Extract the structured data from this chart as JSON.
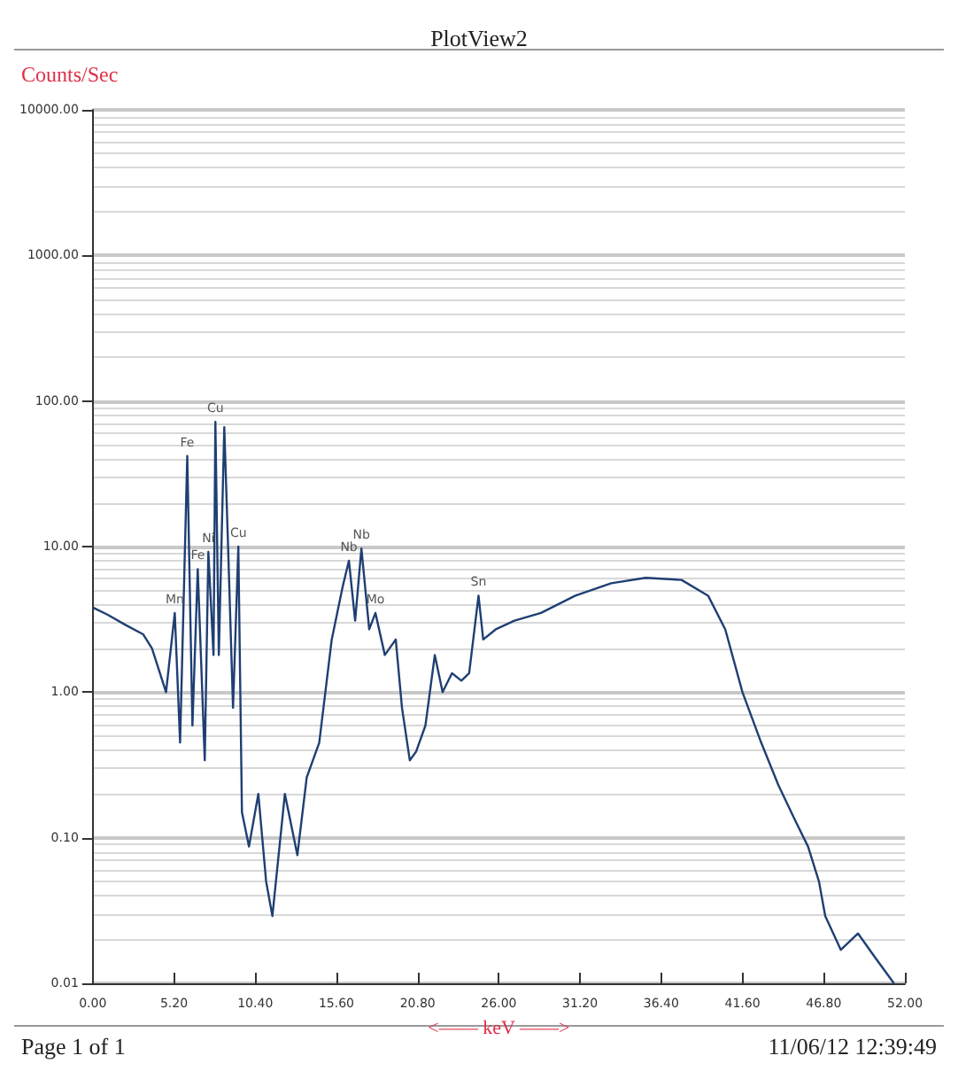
{
  "chart_data": {
    "type": "line",
    "title": "PlotView2",
    "ylabel": "Counts/Sec",
    "xlabel": "<—— keV ——>",
    "x": [
      0.05,
      0.96,
      2.09,
      3.22,
      3.79,
      4.69,
      5.25,
      5.59,
      6.05,
      6.38,
      6.72,
      7.17,
      7.4,
      7.73,
      7.85,
      8.07,
      8.42,
      8.64,
      8.98,
      9.32,
      9.55,
      10.0,
      10.6,
      11.1,
      11.5,
      12.3,
      13.1,
      13.7,
      14.5,
      15.3,
      16.0,
      16.4,
      16.8,
      17.2,
      17.7,
      18.1,
      18.7,
      19.4,
      19.8,
      20.3,
      20.7,
      21.3,
      21.9,
      22.4,
      23.0,
      23.6,
      24.1,
      24.7,
      25.0,
      25.8,
      27.0,
      28.7,
      30.9,
      33.2,
      35.4,
      37.7,
      39.4,
      40.5,
      41.6,
      42.8,
      43.9,
      45.0,
      45.8,
      46.5,
      46.9,
      47.9,
      49.0,
      50.1,
      51.3
    ],
    "series": [
      {
        "color": "#1f3f73",
        "values": [
          3.8,
          3.4,
          2.9,
          2.5,
          2.0,
          1.0,
          3.5,
          0.45,
          42,
          0.59,
          7.0,
          0.34,
          9.2,
          1.8,
          72,
          1.8,
          66,
          12,
          0.78,
          10,
          0.15,
          0.087,
          0.2,
          0.05,
          0.029,
          0.2,
          0.076,
          0.26,
          0.45,
          2.3,
          5.3,
          8.0,
          3.1,
          9.7,
          2.7,
          3.5,
          1.8,
          2.3,
          0.78,
          0.34,
          0.39,
          0.59,
          1.8,
          1.0,
          1.35,
          1.2,
          1.35,
          4.6,
          2.3,
          2.7,
          3.1,
          3.5,
          4.6,
          5.6,
          6.1,
          5.9,
          4.6,
          2.7,
          1.0,
          0.45,
          0.23,
          0.13,
          0.087,
          0.05,
          0.029,
          0.017,
          0.022,
          0.015,
          0.01
        ]
      }
    ],
    "xlim": [
      0,
      52
    ],
    "xticks": [
      {
        "value": 0,
        "label": "0.00"
      },
      {
        "value": 5.2,
        "label": "5.20"
      },
      {
        "value": 10.4,
        "label": "10.40"
      },
      {
        "value": 15.6,
        "label": "15.60"
      },
      {
        "value": 20.8,
        "label": "20.80"
      },
      {
        "value": 26,
        "label": "26.00"
      },
      {
        "value": 31.2,
        "label": "31.20"
      },
      {
        "value": 36.4,
        "label": "36.40"
      },
      {
        "value": 41.6,
        "label": "41.60"
      },
      {
        "value": 46.8,
        "label": "46.80"
      },
      {
        "value": 52,
        "label": "52.00"
      }
    ],
    "ylim": [
      0.01,
      10000
    ],
    "yticks": [
      {
        "value": 0.01,
        "label": "0.01"
      },
      {
        "value": 0.1,
        "label": "0.10"
      },
      {
        "value": 1,
        "label": "1.00"
      },
      {
        "value": 10,
        "label": "10.00"
      },
      {
        "value": 100,
        "label": "100.00"
      },
      {
        "value": 1000,
        "label": "1000.00"
      },
      {
        "value": 10000,
        "label": "10000.00"
      }
    ],
    "log": "y",
    "grid": "y",
    "annotations": [
      {
        "text": "Mn",
        "x": 5.25,
        "y": 3.5
      },
      {
        "text": "Fe",
        "x": 6.05,
        "y": 42
      },
      {
        "text": "Fe",
        "x": 6.72,
        "y": 7
      },
      {
        "text": "Ni",
        "x": 7.4,
        "y": 9.2
      },
      {
        "text": "Cu",
        "x": 7.85,
        "y": 72
      },
      {
        "text": "Cu",
        "x": 9.32,
        "y": 10
      },
      {
        "text": "Nb",
        "x": 16.4,
        "y": 8
      },
      {
        "text": "Nb",
        "x": 17.2,
        "y": 9.7
      },
      {
        "text": "Mo",
        "x": 18.1,
        "y": 3.5
      },
      {
        "text": "Sn",
        "x": 24.7,
        "y": 4.6
      },
      "Page 1 of 1",
      "11/06/12 12:39:49"
    ]
  }
}
